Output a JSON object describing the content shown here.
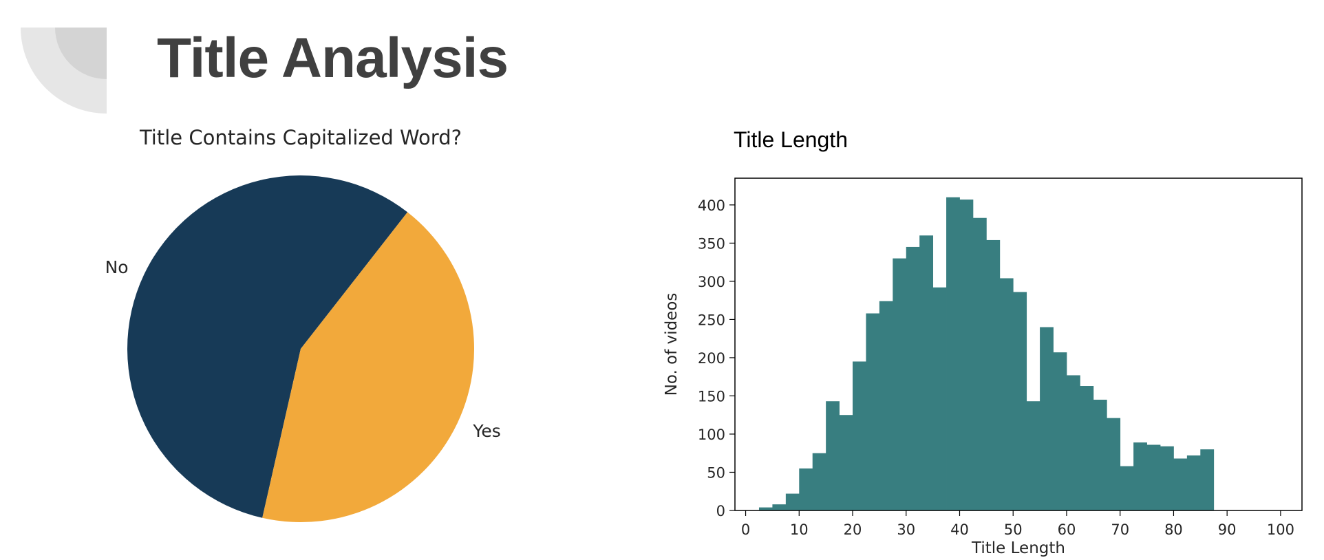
{
  "page": {
    "title": "Title Analysis"
  },
  "colors": {
    "navy": "#173a57",
    "orange": "#f2a93b",
    "teal": "#387e80",
    "heading": "#404040"
  },
  "chart_data": [
    {
      "type": "pie",
      "title": "Title Contains Capitalized Word?",
      "slices": [
        {
          "label": "No",
          "value": 57
        },
        {
          "label": "Yes",
          "value": 43
        }
      ]
    },
    {
      "type": "bar",
      "title": "Title Length",
      "xlabel": "Title Length",
      "ylabel": "No. of videos",
      "xlim": [
        -2,
        104
      ],
      "ylim": [
        0,
        435
      ],
      "xticks": [
        0,
        10,
        20,
        30,
        40,
        50,
        60,
        70,
        80,
        90,
        100
      ],
      "yticks": [
        0,
        50,
        100,
        150,
        200,
        250,
        300,
        350,
        400
      ],
      "bin_start": 0,
      "bin_width": 2.5,
      "values": [
        0,
        4,
        8,
        22,
        55,
        75,
        143,
        125,
        195,
        258,
        274,
        330,
        345,
        360,
        292,
        410,
        407,
        383,
        354,
        304,
        286,
        143,
        240,
        207,
        177,
        163,
        145,
        121,
        58,
        89,
        86,
        84,
        68,
        72,
        80
      ]
    }
  ]
}
